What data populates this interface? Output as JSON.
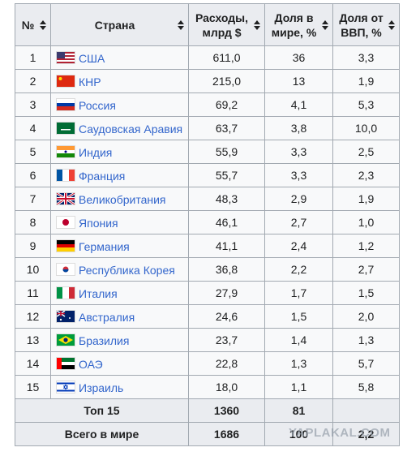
{
  "table": {
    "header": [
      "№",
      "Страна",
      "Расходы, млрд $",
      "Доля в мире, %",
      "Доля от ВВП, %"
    ],
    "rows": [
      [
        "1",
        "США",
        "611,0",
        "36",
        "3,3"
      ],
      [
        "2",
        "КНР",
        "215,0",
        "13",
        "1,9"
      ],
      [
        "3",
        "Россия",
        "69,2",
        "4,1",
        "5,3"
      ],
      [
        "4",
        "Саудовская Аравия",
        "63,7",
        "3,8",
        "10,0"
      ],
      [
        "5",
        "Индия",
        "55,9",
        "3,3",
        "2,5"
      ],
      [
        "6",
        "Франция",
        "55,7",
        "3,3",
        "2,3"
      ],
      [
        "7",
        "Великобритания",
        "48,3",
        "2,9",
        "1,9"
      ],
      [
        "8",
        "Япония",
        "46,1",
        "2,7",
        "1,0"
      ],
      [
        "9",
        "Германия",
        "41,1",
        "2,4",
        "1,2"
      ],
      [
        "10",
        "Республика Корея",
        "36,8",
        "2,2",
        "2,7"
      ],
      [
        "11",
        "Италия",
        "27,9",
        "1,7",
        "1,5"
      ],
      [
        "12",
        "Австралия",
        "24,6",
        "1,5",
        "2,0"
      ],
      [
        "13",
        "Бразилия",
        "23,7",
        "1,4",
        "1,3"
      ],
      [
        "14",
        "ОАЭ",
        "22,8",
        "1,3",
        "5,7"
      ],
      [
        "15",
        "Израиль",
        "18,0",
        "1,1",
        "5,8"
      ]
    ],
    "footer": [
      [
        "Топ 15",
        "1360",
        "81"
      ],
      [
        "Всего в мире",
        "1686",
        "100",
        "2,2"
      ]
    ]
  },
  "watermark": "YAPLAKAL.COM"
}
